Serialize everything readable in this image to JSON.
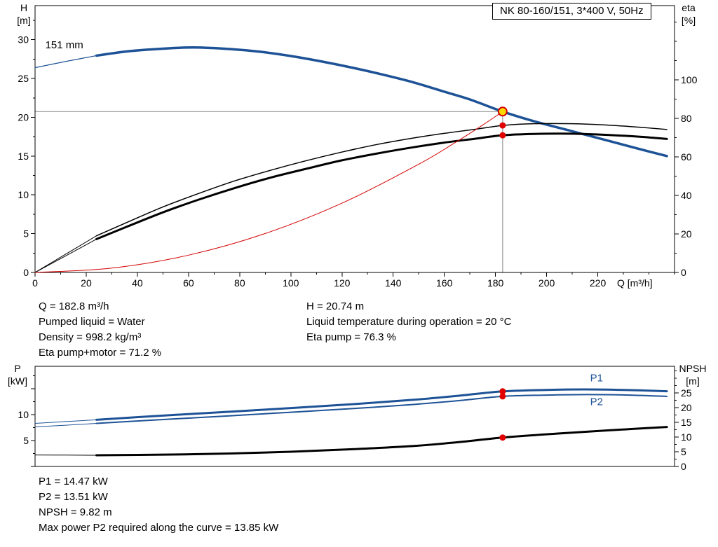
{
  "title_box": "NK 80-160/151, 3*400 V, 50Hz",
  "readouts_top": {
    "left": [
      "Q = 182.8 m³/h",
      "Pumped liquid = Water",
      "Density = 998.2 kg/m³",
      "Eta pump+motor = 71.2 %"
    ],
    "right": [
      "H = 20.74 m",
      "Liquid temperature during operation = 20 °C",
      "Eta pump = 76.3 %"
    ]
  },
  "readouts_bottom": [
    "P1 = 14.47 kW",
    "P2 = 13.51 kW",
    "NPSH = 9.82 m",
    "Max power P2 required along the curve = 13.85 kW"
  ],
  "colors": {
    "curve_blue": "#1d5296",
    "curve_black": "#000000",
    "curve_red": "#d40000",
    "crosshair_gray": "#999999",
    "duty_fill": "#ffd800",
    "duty_stroke": "#d40000",
    "dot_red": "#e00000"
  },
  "chart_data": [
    {
      "id": "qh",
      "type": "line",
      "title": "QH and efficiency curves",
      "x_axis": {
        "label": "Q [m³/h]",
        "range": [
          0,
          250
        ],
        "major_ticks": [
          0,
          20,
          40,
          60,
          80,
          100,
          120,
          140,
          160,
          180,
          200,
          220
        ],
        "minor_step": 10,
        "show_labels": true
      },
      "left_axis": {
        "label_lines": [
          "H",
          "[m]"
        ],
        "range": [
          0,
          34.4
        ],
        "major_ticks": [
          0,
          5,
          10,
          15,
          20,
          25,
          30
        ],
        "minor_step": 2.5
      },
      "right_axis": {
        "label_lines": [
          "eta",
          "[%]"
        ],
        "range": [
          0,
          138.5
        ],
        "major_ticks": [
          0,
          20,
          40,
          60,
          80,
          100
        ],
        "minor_step": 10
      },
      "series": [
        {
          "name": "pump-qh-lead",
          "axis": "left",
          "color": "#1d5296",
          "width": 1.2,
          "points": [
            [
              0,
              26.4
            ],
            [
              12,
              27.2
            ],
            [
              24,
              27.95
            ]
          ]
        },
        {
          "name": "pump-qh-151mm",
          "axis": "left",
          "color": "#1d5296",
          "width": 3.5,
          "points": [
            [
              24,
              27.95
            ],
            [
              36,
              28.5
            ],
            [
              50,
              28.85
            ],
            [
              62,
              29.0
            ],
            [
              76,
              28.8
            ],
            [
              88,
              28.45
            ],
            [
              100,
              27.9
            ],
            [
              112,
              27.2
            ],
            [
              124,
              26.4
            ],
            [
              136,
              25.5
            ],
            [
              148,
              24.5
            ],
            [
              160,
              23.3
            ],
            [
              170,
              22.3
            ],
            [
              182.8,
              20.74
            ],
            [
              195,
              19.5
            ],
            [
              210,
              18.2
            ],
            [
              225,
              16.9
            ],
            [
              237,
              15.85
            ],
            [
              247,
              15.0
            ]
          ]
        },
        {
          "name": "eta-pump-lead",
          "axis": "right",
          "color": "#000000",
          "width": 1,
          "points": [
            [
              0,
              0
            ],
            [
              12,
              9.5
            ],
            [
              24,
              19
            ]
          ]
        },
        {
          "name": "eta-pump",
          "axis": "right",
          "color": "#000000",
          "width": 1.5,
          "points": [
            [
              24,
              19
            ],
            [
              36,
              26
            ],
            [
              50,
              34
            ],
            [
              64,
              41
            ],
            [
              78,
              47.5
            ],
            [
              92,
              53
            ],
            [
              106,
              58
            ],
            [
              120,
              62.5
            ],
            [
              134,
              66.5
            ],
            [
              148,
              69.8
            ],
            [
              160,
              72.2
            ],
            [
              172,
              74.3
            ],
            [
              182.8,
              76.3
            ],
            [
              195,
              77.2
            ],
            [
              210,
              77.2
            ],
            [
              225,
              76.4
            ],
            [
              237,
              75.3
            ],
            [
              247,
              74.2
            ]
          ]
        },
        {
          "name": "eta-pump-motor-lead",
          "axis": "right",
          "color": "#000000",
          "width": 1,
          "points": [
            [
              0,
              0
            ],
            [
              12,
              8.6
            ],
            [
              24,
              17.3
            ]
          ]
        },
        {
          "name": "eta-pump-motor",
          "axis": "right",
          "color": "#000000",
          "width": 3,
          "points": [
            [
              24,
              17.3
            ],
            [
              36,
              23.8
            ],
            [
              50,
              31.2
            ],
            [
              64,
              37.8
            ],
            [
              78,
              43.8
            ],
            [
              92,
              49.2
            ],
            [
              106,
              53.8
            ],
            [
              120,
              58.2
            ],
            [
              134,
              61.8
            ],
            [
              148,
              65
            ],
            [
              160,
              67.4
            ],
            [
              172,
              69.4
            ],
            [
              182.8,
              71.2
            ],
            [
              195,
              71.9
            ],
            [
              210,
              72
            ],
            [
              225,
              71.3
            ],
            [
              237,
              70.4
            ],
            [
              247,
              69.3
            ]
          ]
        },
        {
          "name": "system-curve",
          "axis": "left",
          "color": "#d40000",
          "width": 1,
          "points": [
            [
              0,
              0
            ],
            [
              30,
              0.56
            ],
            [
              60,
              2.23
            ],
            [
              90,
              5.02
            ],
            [
              120,
              8.93
            ],
            [
              150,
              13.95
            ],
            [
              165,
              16.9
            ],
            [
              175,
              19.0
            ],
            [
              182.8,
              20.74
            ]
          ]
        }
      ],
      "markers": [
        {
          "q": 182.8,
          "v": 20.74,
          "axis": "left",
          "kind": "duty"
        },
        {
          "q": 182.8,
          "v": 76.3,
          "axis": "right",
          "kind": "dot"
        },
        {
          "q": 182.8,
          "v": 71.2,
          "axis": "right",
          "kind": "dot"
        }
      ],
      "crosshair": {
        "q": 182.8,
        "v": 20.74,
        "axis": "left"
      },
      "text_labels": [
        {
          "text": "151 mm",
          "q": 4,
          "v": 28.9,
          "axis": "left",
          "color": "#000000",
          "size": 15,
          "anchor": "start"
        }
      ]
    },
    {
      "id": "power",
      "type": "line",
      "title": "Power and NPSH curves",
      "x_axis": {
        "label": "",
        "range": [
          0,
          250
        ],
        "major_ticks": [],
        "minor_step": 0,
        "show_labels": false
      },
      "left_axis": {
        "label_lines": [
          "P",
          "[kW]"
        ],
        "range": [
          0,
          19.3
        ],
        "major_ticks": [
          0,
          5,
          10,
          15
        ],
        "labels": [
          5,
          10
        ],
        "minor_step": 2.5
      },
      "right_axis": {
        "label_lines": [
          "NPSH",
          "[m]"
        ],
        "range": [
          0,
          34
        ],
        "major_ticks": [
          0,
          5,
          10,
          15,
          20,
          25
        ],
        "minor_step": 2.5
      },
      "series": [
        {
          "name": "p1-lead",
          "axis": "left",
          "color": "#1d5296",
          "width": 1,
          "points": [
            [
              0,
              8.3
            ],
            [
              12,
              8.65
            ],
            [
              24,
              9.0
            ]
          ]
        },
        {
          "name": "p1",
          "axis": "left",
          "color": "#1d5296",
          "width": 3,
          "points": [
            [
              24,
              9.0
            ],
            [
              50,
              9.8
            ],
            [
              76,
              10.55
            ],
            [
              100,
              11.25
            ],
            [
              124,
              12.0
            ],
            [
              148,
              12.85
            ],
            [
              166,
              13.65
            ],
            [
              182.8,
              14.47
            ],
            [
              200,
              14.75
            ],
            [
              215,
              14.85
            ],
            [
              230,
              14.75
            ],
            [
              247,
              14.5
            ]
          ]
        },
        {
          "name": "p2-lead",
          "axis": "left",
          "color": "#1d5296",
          "width": 1,
          "points": [
            [
              0,
              7.65
            ],
            [
              12,
              7.95
            ],
            [
              24,
              8.3
            ]
          ]
        },
        {
          "name": "p2",
          "axis": "left",
          "color": "#1d5296",
          "width": 2,
          "points": [
            [
              24,
              8.3
            ],
            [
              50,
              9.05
            ],
            [
              76,
              9.75
            ],
            [
              100,
              10.45
            ],
            [
              124,
              11.15
            ],
            [
              148,
              11.95
            ],
            [
              166,
              12.7
            ],
            [
              182.8,
              13.51
            ],
            [
              200,
              13.75
            ],
            [
              215,
              13.85
            ],
            [
              230,
              13.78
            ],
            [
              247,
              13.5
            ]
          ]
        },
        {
          "name": "npsh-lead",
          "axis": "right",
          "color": "#000000",
          "width": 1,
          "points": [
            [
              0,
              3.9
            ],
            [
              12,
              3.85
            ],
            [
              24,
              3.8
            ]
          ]
        },
        {
          "name": "npsh",
          "axis": "right",
          "color": "#000000",
          "width": 3,
          "points": [
            [
              24,
              3.8
            ],
            [
              50,
              4.0
            ],
            [
              76,
              4.4
            ],
            [
              100,
              5.0
            ],
            [
              124,
              5.85
            ],
            [
              148,
              6.95
            ],
            [
              166,
              8.3
            ],
            [
              182.8,
              9.82
            ],
            [
              205,
              11.2
            ],
            [
              225,
              12.3
            ],
            [
              247,
              13.4
            ]
          ]
        }
      ],
      "markers": [
        {
          "q": 182.8,
          "v": 14.47,
          "axis": "left",
          "kind": "dot"
        },
        {
          "q": 182.8,
          "v": 13.51,
          "axis": "left",
          "kind": "dot"
        },
        {
          "q": 182.8,
          "v": 9.82,
          "axis": "right",
          "kind": "dot"
        }
      ],
      "crosshair": null,
      "text_labels": [
        {
          "text": "P1",
          "q": 217,
          "v": 16.4,
          "axis": "left",
          "color": "#1d5296",
          "size": 15,
          "anchor": "start"
        },
        {
          "text": "P2",
          "q": 217,
          "v": 11.8,
          "axis": "left",
          "color": "#1d5296",
          "size": 15,
          "anchor": "start"
        }
      ]
    }
  ]
}
